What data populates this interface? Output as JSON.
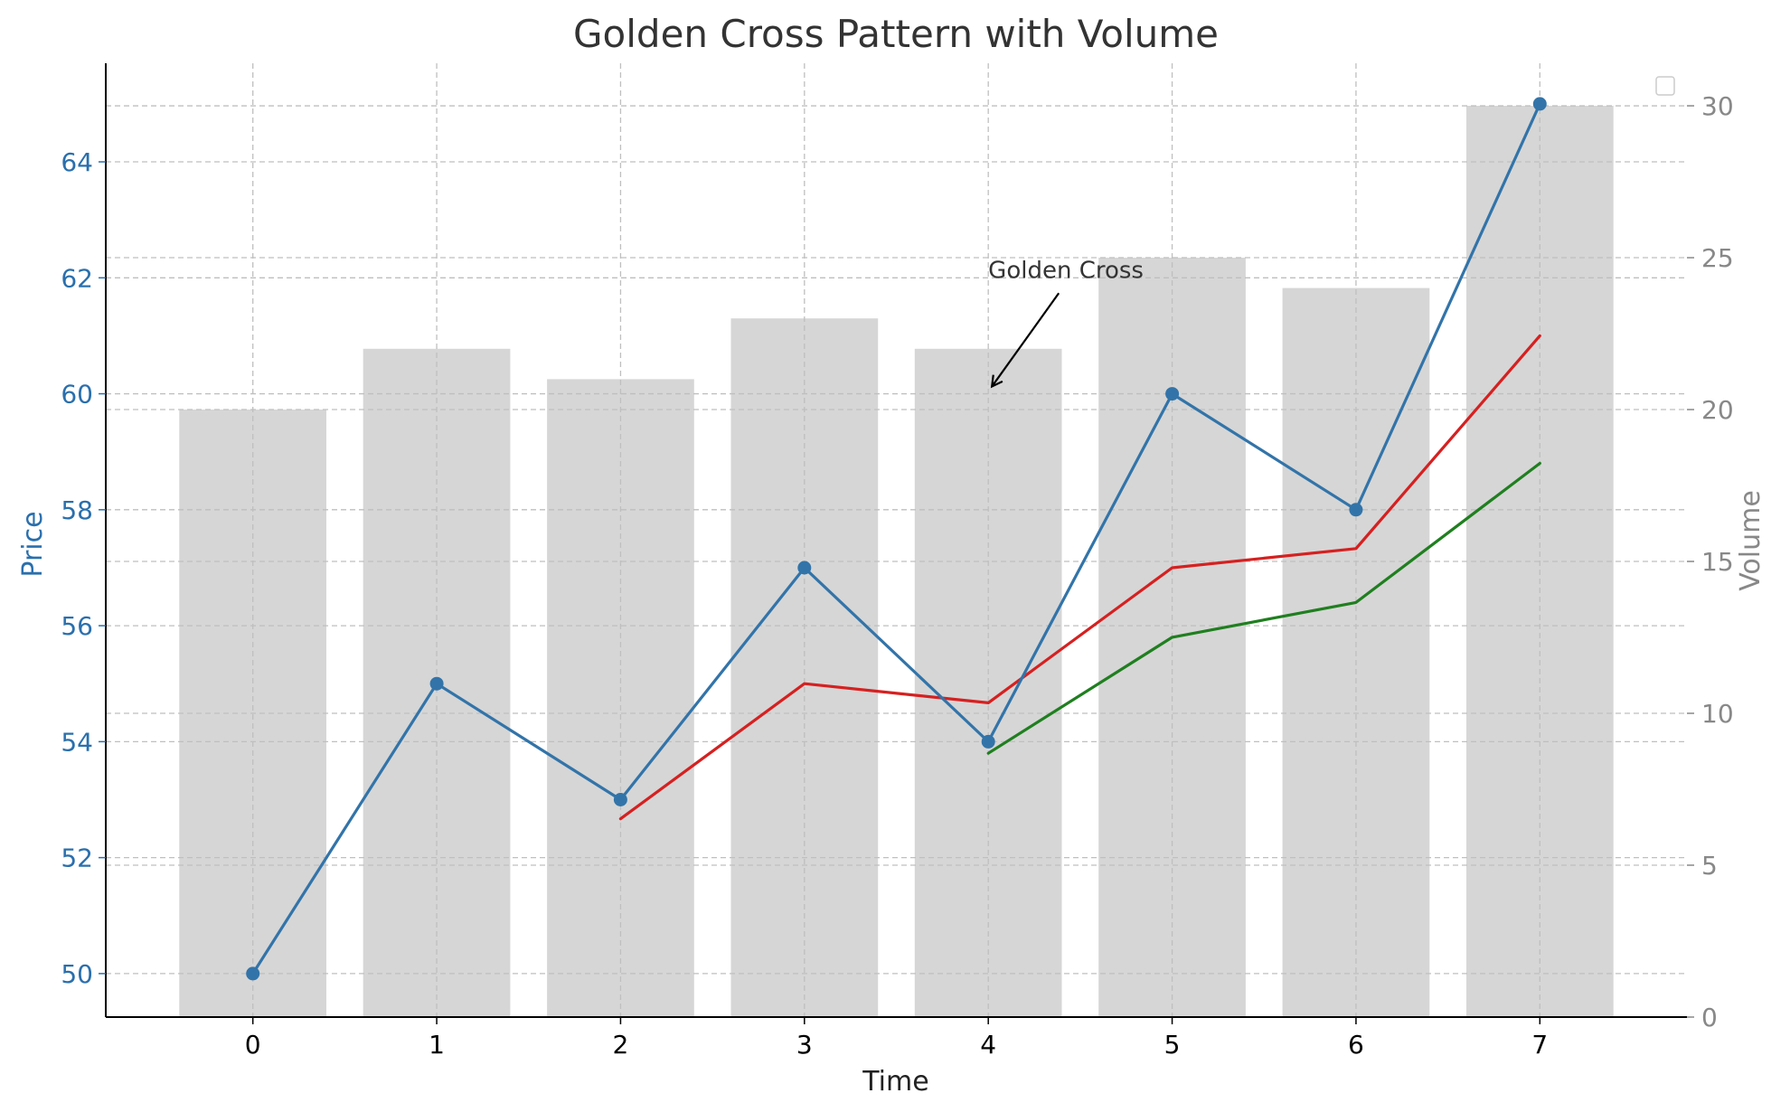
{
  "chart_data": {
    "type": "line",
    "title": "Golden Cross Pattern with Volume",
    "xlabel": "Time",
    "ylabel": "Price",
    "y2label": "Volume",
    "x": [
      0,
      1,
      2,
      3,
      4,
      5,
      6,
      7
    ],
    "xlim": [
      -0.8,
      7.8
    ],
    "ylim": [
      49.25,
      65.7
    ],
    "y2lim": [
      0,
      31.4
    ],
    "yticks": [
      50,
      52,
      54,
      56,
      58,
      60,
      62,
      64
    ],
    "y2ticks": [
      0,
      5,
      10,
      15,
      20,
      25,
      30
    ],
    "grid": true,
    "legend": "empty box, top-right",
    "series": [
      {
        "role": "price",
        "type": "line",
        "markers": true,
        "color": "#3274a9",
        "values": [
          50,
          55,
          53,
          57,
          54,
          60,
          58,
          65
        ]
      },
      {
        "role": "short-ma",
        "type": "line",
        "markers": false,
        "color": "#d62020",
        "values": [
          null,
          null,
          52.67,
          55.0,
          54.67,
          57.0,
          57.33,
          61.0
        ]
      },
      {
        "role": "long-ma",
        "type": "line",
        "markers": false,
        "color": "#1f7f1f",
        "values": [
          null,
          null,
          null,
          null,
          53.8,
          55.8,
          56.4,
          58.8
        ]
      },
      {
        "role": "volume",
        "type": "bar",
        "axis": "right",
        "color": "#d6d6d6",
        "values": [
          20,
          22,
          21,
          23,
          22,
          25,
          24,
          30
        ]
      }
    ],
    "annotations": [
      {
        "text": "Golden Cross",
        "x": 4,
        "y": 60
      }
    ],
    "colors": {
      "price_axis": "#2a6fad",
      "volume_axis": "#888888",
      "grid": "#bfbfbf",
      "bars": "#d6d6d6"
    }
  }
}
